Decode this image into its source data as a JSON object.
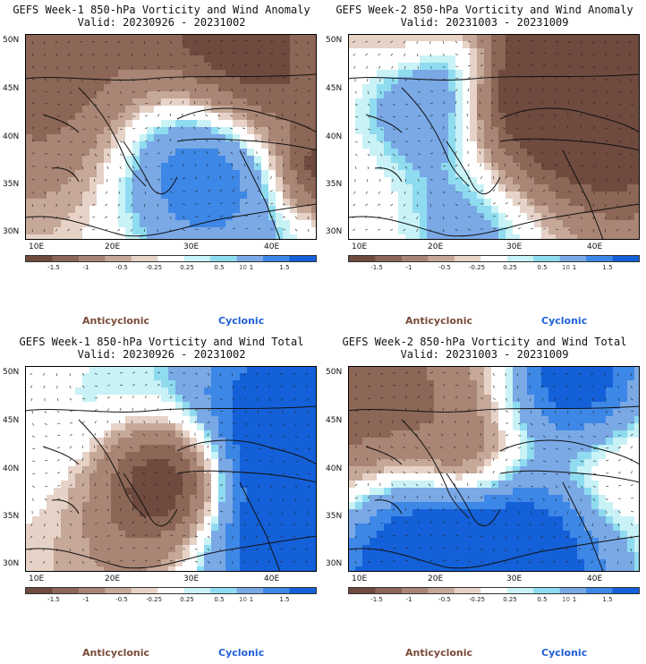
{
  "panels": [
    {
      "title": "GEFS Week-1 850-hPa Vorticity and Wind Anomaly",
      "valid": "Valid: 20230926 - 20231002",
      "seed": 11
    },
    {
      "title": "GEFS Week-2 850-hPa Vorticity and Wind Anomaly",
      "valid": "Valid: 20231003 - 20231009",
      "seed": 23
    },
    {
      "title": "GEFS Week-1 850-hPa Vorticity and Wind Total",
      "valid": "Valid: 20230926 - 20231002",
      "seed": 37
    },
    {
      "title": "GEFS Week-2 850-hPa Vorticity and Wind Total",
      "valid": "Valid: 20231003 - 20231009",
      "seed": 51
    }
  ],
  "lat_labels": [
    "50N",
    "45N",
    "40N",
    "35N",
    "30N"
  ],
  "lon_labels": [
    "10E",
    "20E",
    "30E",
    "40E"
  ],
  "colorbar": {
    "labels": [
      "-1.5",
      "-1",
      "-0.5",
      "-0.25",
      "0.25",
      "0.5",
      "1",
      "1.5"
    ],
    "unit": "10",
    "colors": [
      "#6e4a3f",
      "#8c6656",
      "#a98575",
      "#c6a898",
      "#e6d2c7",
      "#ffffff",
      "#c8f2f6",
      "#8fdcf0",
      "#7aa9e6",
      "#3d87e6",
      "#1460d8"
    ]
  },
  "legend": {
    "anticyclonic": "Anticyclonic",
    "cyclonic": "Cyclonic"
  }
}
